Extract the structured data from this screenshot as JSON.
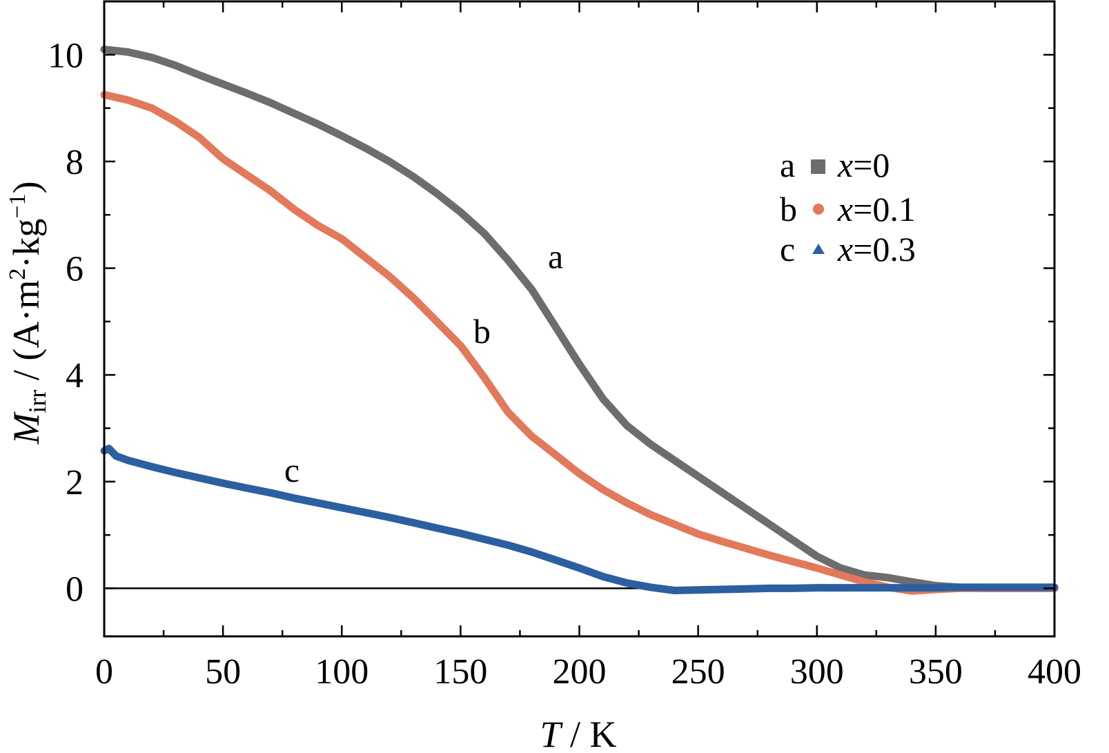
{
  "chart_data": {
    "type": "line",
    "xlabel": {
      "symbol": "T",
      "rest": " / K"
    },
    "ylabel": {
      "symbol": "M",
      "sub": "irr",
      "rest": " / (A·m",
      "sup1": "2",
      "rest2": "·kg",
      "sup2": "−1",
      "close": ")"
    },
    "xlim": [
      0,
      400
    ],
    "ylim": [
      -0.9,
      11
    ],
    "xticks": [
      0,
      50,
      100,
      150,
      200,
      250,
      300,
      350,
      400
    ],
    "yticks": [
      0,
      2,
      4,
      6,
      8,
      10
    ],
    "xtick_labels": [
      "0",
      "50",
      "100",
      "150",
      "200",
      "250",
      "300",
      "350",
      "400"
    ],
    "ytick_labels": [
      "0",
      "2",
      "4",
      "6",
      "8",
      "10"
    ],
    "grid": false,
    "legend_position": "top-right",
    "zero_line": true,
    "series": [
      {
        "name": "x=0",
        "legend_letter": "a",
        "legend_var": "x",
        "legend_value": "=0",
        "curve_label": "a",
        "label_at": [
          190,
          6.0
        ],
        "color": "#6d6d6d",
        "marker": "square",
        "x": [
          0,
          10,
          20,
          30,
          40,
          50,
          60,
          70,
          80,
          90,
          100,
          110,
          120,
          130,
          140,
          150,
          160,
          170,
          180,
          190,
          200,
          210,
          220,
          230,
          240,
          250,
          260,
          270,
          280,
          290,
          300,
          310,
          320,
          330,
          340,
          350,
          360,
          370,
          380,
          390,
          400
        ],
        "y": [
          10.1,
          10.05,
          9.95,
          9.8,
          9.62,
          9.45,
          9.28,
          9.1,
          8.9,
          8.7,
          8.48,
          8.25,
          8.0,
          7.72,
          7.4,
          7.05,
          6.65,
          6.15,
          5.6,
          4.9,
          4.2,
          3.55,
          3.05,
          2.7,
          2.4,
          2.1,
          1.8,
          1.5,
          1.2,
          0.9,
          0.6,
          0.38,
          0.25,
          0.2,
          0.12,
          0.05,
          0.02,
          0.0,
          0.0,
          0.0,
          0.0
        ]
      },
      {
        "name": "x=0.1",
        "legend_letter": "b",
        "legend_var": "x",
        "legend_value": "=0.1",
        "curve_label": "b",
        "label_at": [
          159,
          4.6
        ],
        "color": "#e2795a",
        "marker": "circle",
        "x": [
          0,
          10,
          20,
          30,
          40,
          50,
          60,
          70,
          80,
          90,
          100,
          110,
          120,
          130,
          140,
          150,
          160,
          170,
          180,
          190,
          200,
          210,
          220,
          230,
          240,
          250,
          260,
          270,
          280,
          290,
          300,
          310,
          320,
          330,
          340,
          350,
          360,
          370,
          380,
          390,
          400
        ],
        "y": [
          9.25,
          9.15,
          9.0,
          8.75,
          8.45,
          8.05,
          7.75,
          7.45,
          7.1,
          6.8,
          6.55,
          6.2,
          5.85,
          5.45,
          5.0,
          4.55,
          3.95,
          3.3,
          2.85,
          2.5,
          2.15,
          1.85,
          1.6,
          1.38,
          1.2,
          1.02,
          0.88,
          0.75,
          0.62,
          0.5,
          0.38,
          0.25,
          0.12,
          0.02,
          -0.05,
          -0.02,
          0.0,
          0.0,
          0.0,
          0.0,
          0.0
        ]
      },
      {
        "name": "x=0.3",
        "legend_letter": "c",
        "legend_var": "x",
        "legend_value": "=0.3",
        "curve_label": "c",
        "label_at": [
          79,
          2.0
        ],
        "color": "#2c5fa0",
        "marker": "triangle",
        "x": [
          0,
          2,
          5,
          10,
          20,
          30,
          40,
          50,
          60,
          70,
          80,
          90,
          100,
          110,
          120,
          130,
          140,
          150,
          160,
          170,
          180,
          190,
          200,
          210,
          220,
          230,
          240,
          250,
          260,
          270,
          280,
          290,
          300,
          310,
          320,
          330,
          340,
          350,
          360,
          370,
          380,
          390,
          400
        ],
        "y": [
          2.58,
          2.62,
          2.48,
          2.4,
          2.28,
          2.17,
          2.07,
          1.97,
          1.88,
          1.79,
          1.69,
          1.6,
          1.51,
          1.42,
          1.33,
          1.23,
          1.13,
          1.03,
          0.92,
          0.81,
          0.68,
          0.53,
          0.38,
          0.22,
          0.1,
          0.02,
          -0.04,
          -0.03,
          -0.02,
          -0.01,
          0.0,
          0.0,
          0.01,
          0.01,
          0.01,
          0.01,
          0.01,
          0.01,
          0.02,
          0.02,
          0.02,
          0.02,
          0.02
        ]
      }
    ]
  }
}
